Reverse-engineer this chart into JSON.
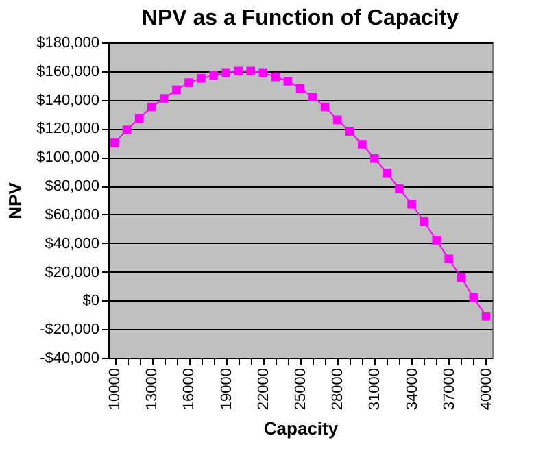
{
  "chart_data": {
    "type": "line",
    "title": "NPV as a Function of Capacity",
    "xlabel": "Capacity",
    "ylabel": "NPV",
    "categories": [
      "10000",
      null,
      null,
      "13000",
      null,
      null,
      "16000",
      null,
      null,
      "19000",
      null,
      null,
      "22000",
      null,
      null,
      "25000",
      null,
      null,
      "28000",
      null,
      null,
      "31000",
      null,
      null,
      "34000",
      null,
      null,
      "37000",
      null,
      null,
      "40000"
    ],
    "series": [
      {
        "color": "#ff00ff",
        "values": [
          110000,
          119000,
          127000,
          135000,
          141000,
          147000,
          152000,
          155000,
          157000,
          159000,
          160000,
          160000,
          159000,
          156000,
          153000,
          148000,
          142000,
          135000,
          126000,
          118000,
          109000,
          99000,
          89000,
          78000,
          67000,
          55000,
          42000,
          29000,
          16000,
          2000,
          -11000
        ]
      }
    ],
    "ylim": [
      -40000,
      180000
    ],
    "yticks": [
      {
        "value": -40000,
        "label": "-$40,000"
      },
      {
        "value": -20000,
        "label": "-$20,000"
      },
      {
        "value": 0,
        "label": "$0"
      },
      {
        "value": 20000,
        "label": "$20,000"
      },
      {
        "value": 40000,
        "label": "$40,000"
      },
      {
        "value": 60000,
        "label": "$60,000"
      },
      {
        "value": 80000,
        "label": "$80,000"
      },
      {
        "value": 100000,
        "label": "$100,000"
      },
      {
        "value": 120000,
        "label": "$120,000"
      },
      {
        "value": 140000,
        "label": "$140,000"
      },
      {
        "value": 160000,
        "label": "$160,000"
      },
      {
        "value": 180000,
        "label": "$180,000"
      }
    ],
    "grid": "y",
    "legend": false,
    "marker": "square",
    "line_style": "solid"
  }
}
